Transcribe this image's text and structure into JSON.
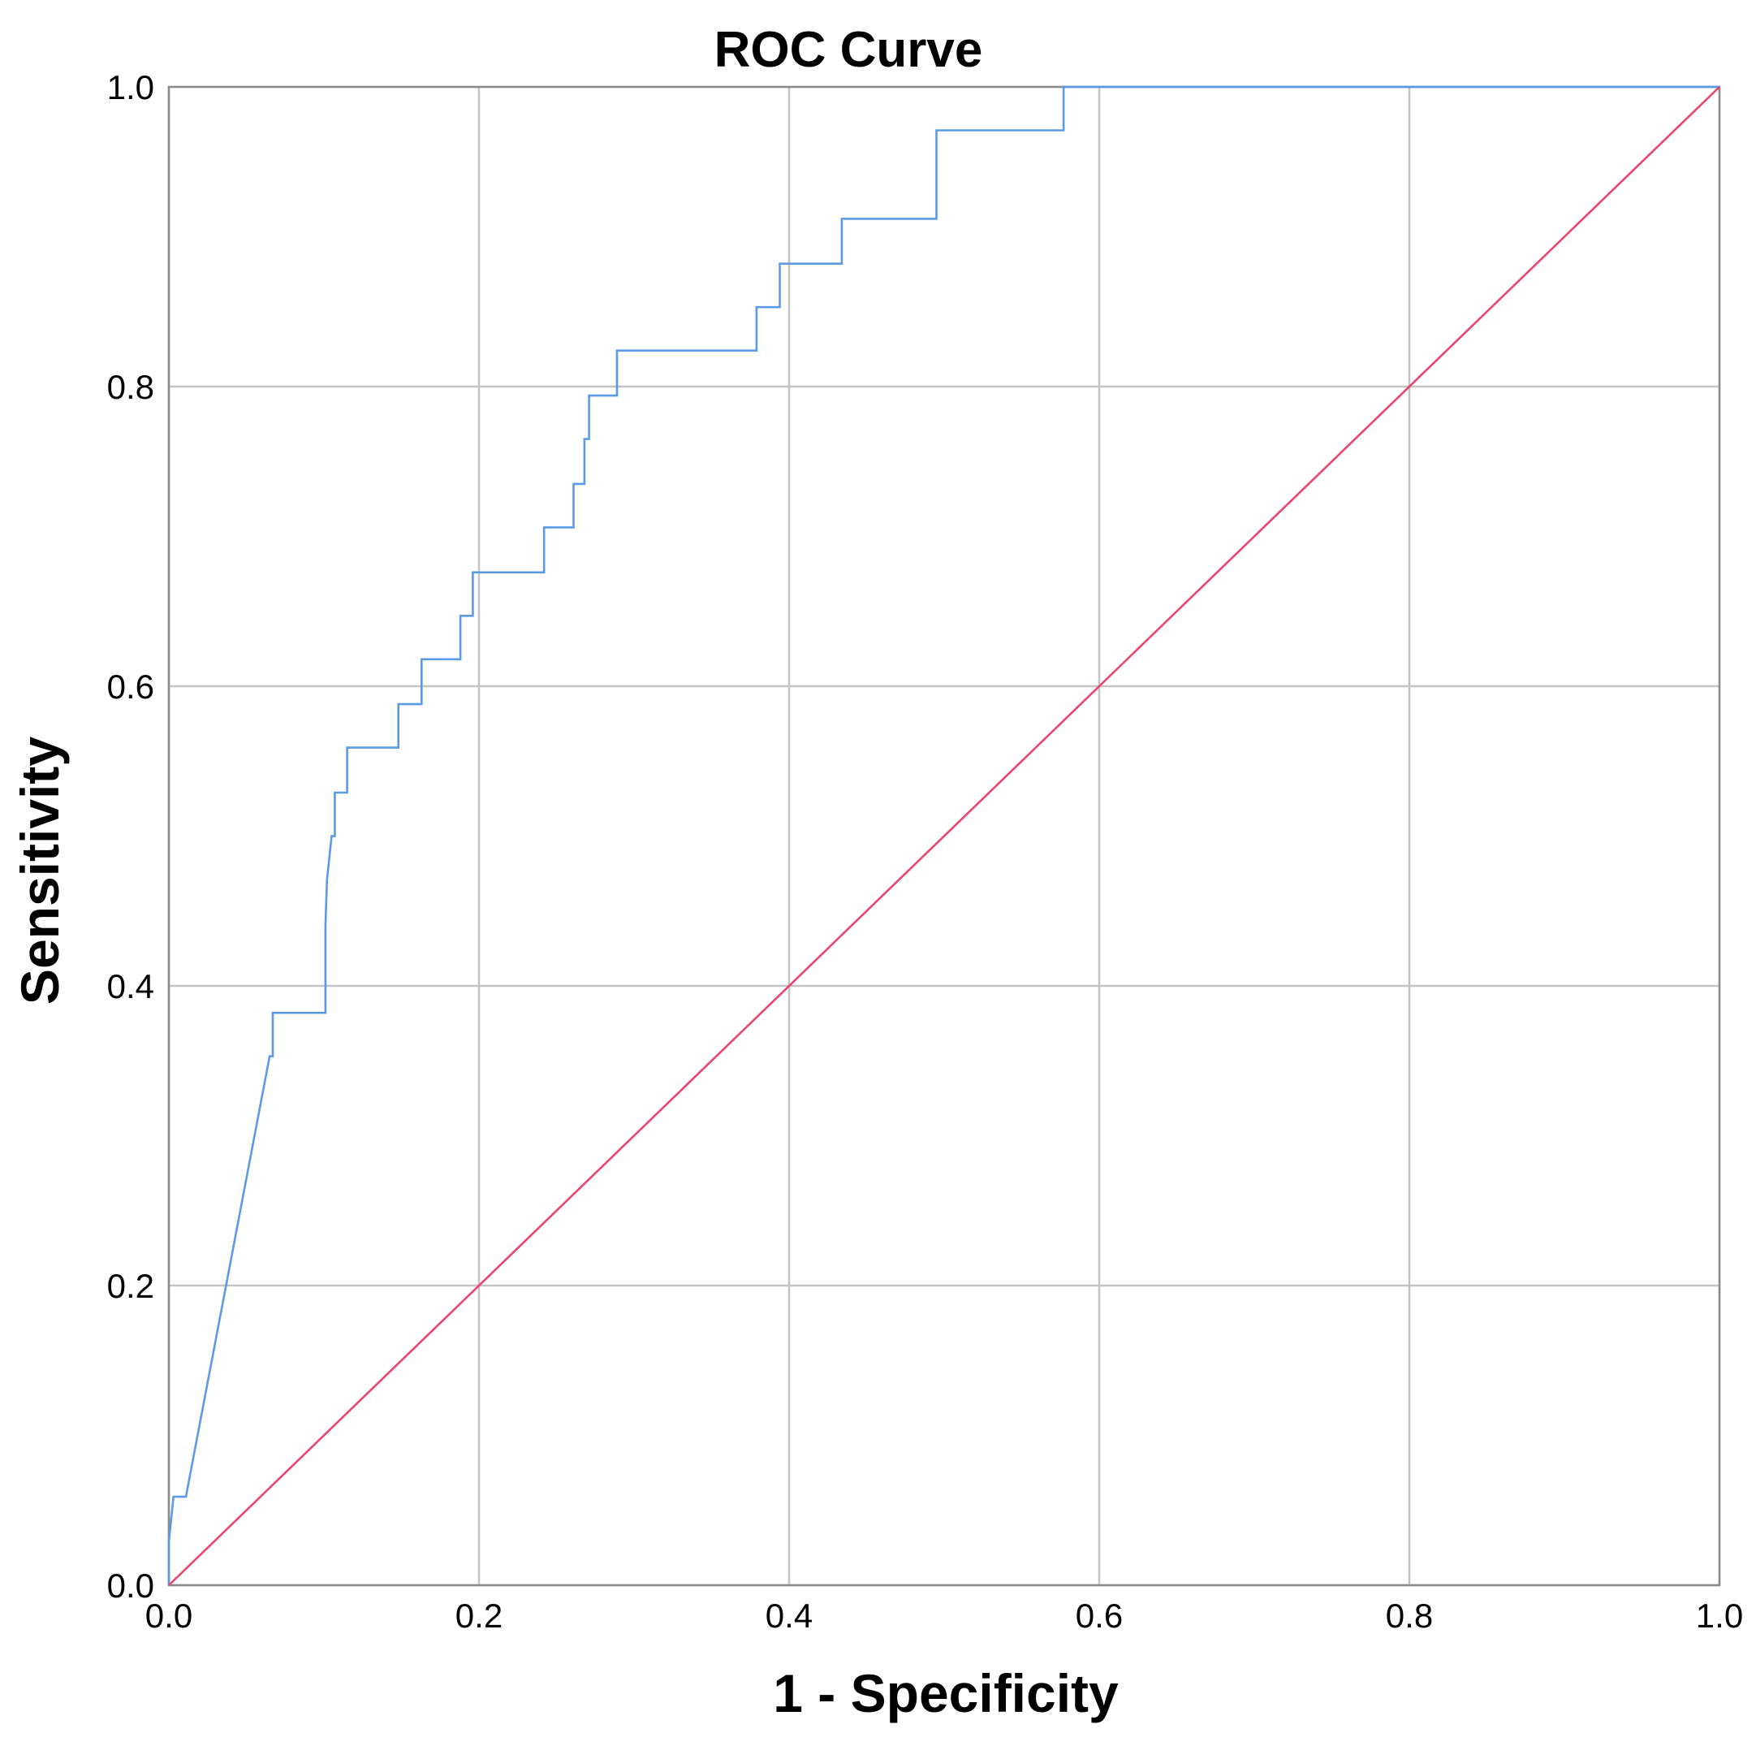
{
  "chart_data": {
    "type": "line",
    "title": "ROC Curve",
    "xlabel": "1 - Specificity",
    "ylabel": "Sensitivity",
    "xlim": [
      0,
      1
    ],
    "ylim": [
      0,
      1
    ],
    "xticks": [
      "0.0",
      "0.2",
      "0.4",
      "0.6",
      "0.8",
      "1.0"
    ],
    "yticks": [
      "0.0",
      "0.2",
      "0.4",
      "0.6",
      "0.8",
      "1.0"
    ],
    "grid": true,
    "series": [
      {
        "color": "#5b9ae6",
        "x": [
          0.0,
          0.0,
          0.003,
          0.003,
          0.011,
          0.065,
          0.067,
          0.067,
          0.101,
          0.101,
          0.102,
          0.105,
          0.107,
          0.107,
          0.115,
          0.115,
          0.148,
          0.148,
          0.163,
          0.163,
          0.188,
          0.188,
          0.196,
          0.196,
          0.242,
          0.242,
          0.261,
          0.261,
          0.268,
          0.268,
          0.271,
          0.271,
          0.289,
          0.289,
          0.379,
          0.379,
          0.394,
          0.394,
          0.434,
          0.434,
          0.495,
          0.495,
          0.577,
          0.577,
          1.0
        ],
        "y": [
          0.0,
          0.029,
          0.059,
          0.059,
          0.059,
          0.353,
          0.353,
          0.382,
          0.382,
          0.441,
          0.471,
          0.5,
          0.5,
          0.529,
          0.529,
          0.559,
          0.559,
          0.588,
          0.588,
          0.618,
          0.618,
          0.647,
          0.647,
          0.676,
          0.676,
          0.706,
          0.706,
          0.735,
          0.735,
          0.765,
          0.765,
          0.794,
          0.794,
          0.824,
          0.824,
          0.853,
          0.853,
          0.882,
          0.882,
          0.912,
          0.912,
          0.971,
          0.971,
          1.0,
          1.0
        ]
      },
      {
        "color": "#e8456f",
        "x": [
          0,
          1
        ],
        "y": [
          0,
          1
        ]
      }
    ]
  }
}
